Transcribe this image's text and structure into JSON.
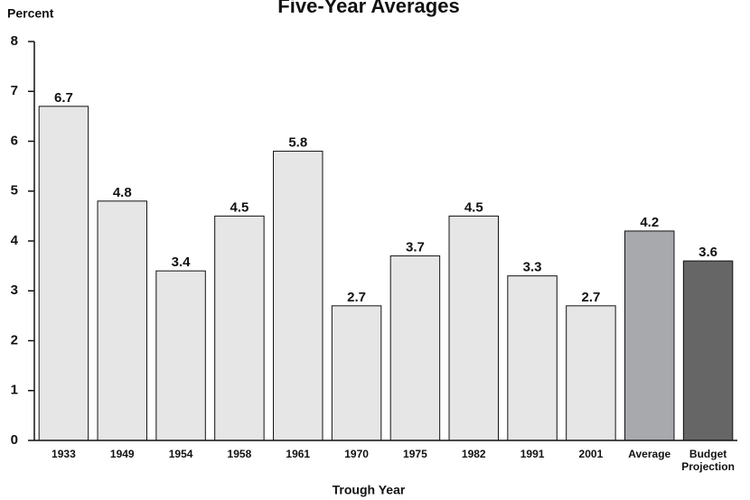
{
  "chart_data": {
    "type": "bar",
    "title": "Five-Year Averages",
    "y_label": "Percent",
    "x_label": "Trough Year",
    "categories": [
      "1933",
      "1949",
      "1954",
      "1958",
      "1961",
      "1970",
      "1975",
      "1982",
      "1991",
      "2001",
      "Average",
      "Budget Projection"
    ],
    "values": [
      6.7,
      4.8,
      3.4,
      4.5,
      5.8,
      2.7,
      3.7,
      4.5,
      3.3,
      2.7,
      4.2,
      3.6
    ],
    "colors": [
      "#e6e6e6",
      "#e6e6e6",
      "#e6e6e6",
      "#e6e6e6",
      "#e6e6e6",
      "#e6e6e6",
      "#e6e6e6",
      "#e6e6e6",
      "#e6e6e6",
      "#e6e6e6",
      "#a8a9ad",
      "#666666"
    ],
    "ylim": [
      0,
      8
    ],
    "yticks": [
      0,
      1,
      2,
      3,
      4,
      5,
      6,
      7,
      8
    ],
    "grid": false
  }
}
